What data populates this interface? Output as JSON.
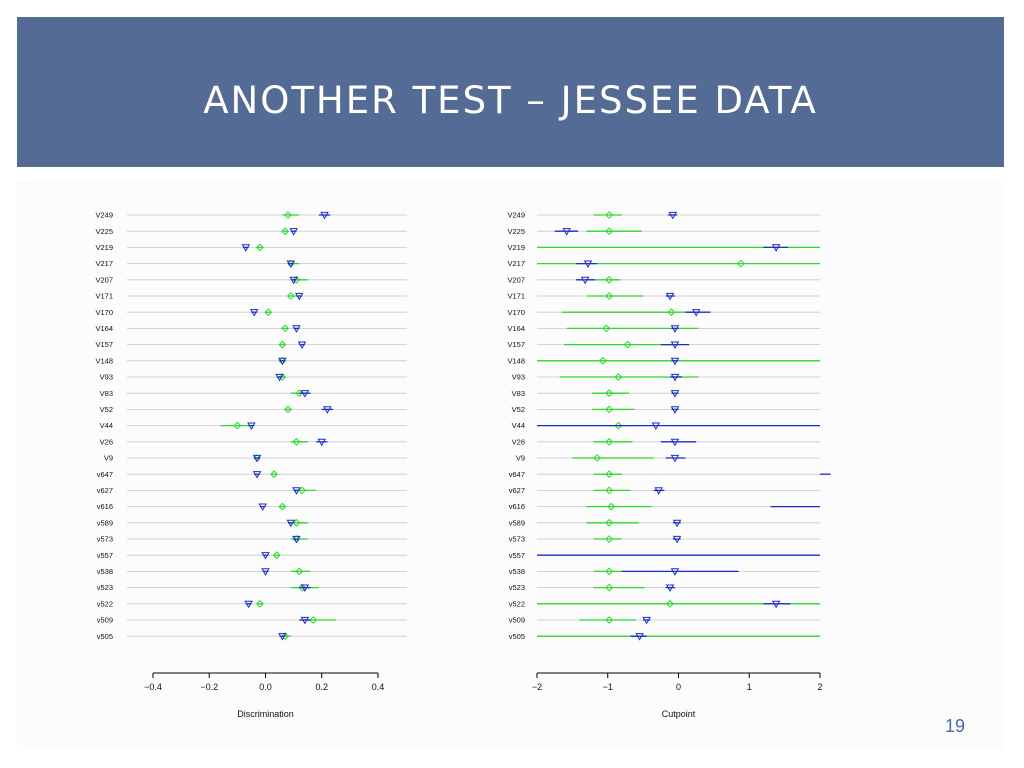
{
  "slide": {
    "title": "Another Test – Jessee Data",
    "page_number": "19"
  },
  "colors": {
    "header_bg": "#546b96",
    "title_text": "#ffffff",
    "green_series": "#2ed82e",
    "blue_series": "#1d2cc8",
    "grid": "#c8c8c8"
  },
  "chart_data": [
    {
      "type": "dot-interval",
      "xlabel": "Discrimination",
      "xlim": [
        -0.4,
        0.4
      ],
      "xticks": [
        -0.4,
        -0.2,
        0.0,
        0.2,
        0.4
      ],
      "xtick_labels": [
        "−0.4",
        "−0.2",
        "0.0",
        "0.2",
        "0.4"
      ],
      "grid": "horizontal",
      "rows": [
        "V249",
        "V225",
        "V219",
        "V217",
        "V207",
        "V171",
        "V170",
        "V164",
        "V157",
        "V148",
        "V93",
        "V83",
        "V52",
        "V44",
        "V26",
        "V9",
        "v647",
        "v627",
        "v616",
        "v589",
        "v573",
        "v557",
        "v538",
        "v523",
        "v522",
        "v509",
        "v505"
      ],
      "series": [
        {
          "marker": "diamond",
          "color": "#2ed82e",
          "points": [
            0.08,
            0.07,
            -0.02,
            0.09,
            0.11,
            0.09,
            0.01,
            0.07,
            0.06,
            0.06,
            0.06,
            0.12,
            0.08,
            -0.1,
            0.11,
            -0.03,
            0.03,
            0.13,
            0.06,
            0.11,
            0.11,
            0.04,
            0.12,
            0.13,
            -0.02,
            0.17,
            0.07
          ],
          "lo": [
            0.06,
            0.06,
            -0.03,
            0.08,
            0.09,
            0.08,
            0.0,
            0.06,
            0.05,
            0.05,
            0.05,
            0.09,
            0.07,
            -0.16,
            0.09,
            -0.04,
            0.02,
            0.1,
            0.05,
            0.08,
            0.09,
            0.03,
            0.09,
            0.09,
            -0.03,
            0.12,
            0.06
          ],
          "hi": [
            0.12,
            0.08,
            -0.01,
            0.12,
            0.15,
            0.11,
            0.02,
            0.08,
            0.07,
            0.07,
            0.07,
            0.15,
            0.09,
            -0.05,
            0.15,
            -0.02,
            0.04,
            0.18,
            0.07,
            0.15,
            0.15,
            0.05,
            0.16,
            0.19,
            -0.01,
            0.25,
            0.09
          ]
        },
        {
          "marker": "triangle-down",
          "color": "#1d2cc8",
          "points": [
            0.21,
            0.1,
            -0.07,
            0.09,
            0.1,
            0.12,
            -0.04,
            0.11,
            0.13,
            0.06,
            0.05,
            0.14,
            0.22,
            -0.05,
            0.2,
            -0.03,
            -0.03,
            0.11,
            -0.01,
            0.09,
            0.11,
            0.0,
            0.0,
            0.14,
            -0.06,
            0.14,
            0.06
          ],
          "lo": [
            0.19,
            0.09,
            -0.08,
            0.08,
            0.09,
            0.11,
            -0.05,
            0.1,
            0.12,
            0.05,
            0.04,
            0.12,
            0.2,
            -0.06,
            0.18,
            -0.04,
            -0.04,
            0.1,
            -0.02,
            0.08,
            0.1,
            -0.01,
            -0.01,
            0.12,
            -0.07,
            0.12,
            0.05
          ],
          "hi": [
            0.23,
            0.11,
            -0.06,
            0.1,
            0.11,
            0.13,
            -0.03,
            0.12,
            0.14,
            0.07,
            0.06,
            0.16,
            0.24,
            -0.04,
            0.22,
            -0.02,
            -0.02,
            0.12,
            0.0,
            0.1,
            0.12,
            0.01,
            0.01,
            0.16,
            -0.05,
            0.16,
            0.07
          ]
        }
      ]
    },
    {
      "type": "dot-interval",
      "xlabel": "Cutpoint",
      "xlim": [
        -2,
        2
      ],
      "xticks": [
        -2,
        -1,
        0,
        1,
        2
      ],
      "xtick_labels": [
        "−2",
        "−1",
        "0",
        "1",
        "2"
      ],
      "grid": "horizontal",
      "rows": [
        "V249",
        "V225",
        "V219",
        "V217",
        "V207",
        "V171",
        "V170",
        "V164",
        "V157",
        "V148",
        "V93",
        "V83",
        "V52",
        "V44",
        "V26",
        "V9",
        "v647",
        "v627",
        "v616",
        "v589",
        "v573",
        "v557",
        "v538",
        "v523",
        "v522",
        "v509",
        "v505"
      ],
      "series": [
        {
          "marker": "diamond",
          "color": "#2ed82e",
          "points": [
            -0.98,
            -0.98,
            null,
            0.88,
            -0.98,
            -0.98,
            -0.1,
            -1.02,
            -0.72,
            -1.07,
            -0.85,
            -0.98,
            -0.98,
            -0.85,
            -0.98,
            -1.15,
            -0.98,
            -0.98,
            -0.95,
            -0.98,
            -0.98,
            null,
            -0.98,
            -0.98,
            -0.12,
            -0.98,
            null
          ],
          "lo": [
            -1.2,
            -1.3,
            -2.0,
            -2.0,
            -1.2,
            -1.3,
            -1.65,
            -1.58,
            -1.62,
            -2.0,
            -1.68,
            -1.22,
            -1.22,
            -1.0,
            -1.2,
            -1.5,
            -1.2,
            -1.2,
            -1.3,
            -1.3,
            -1.2,
            null,
            -1.2,
            -1.2,
            -2.0,
            -1.4,
            -2.0
          ],
          "hi": [
            -0.8,
            -0.52,
            2.0,
            2.0,
            -0.82,
            -0.5,
            0.3,
            0.28,
            0.0,
            2.0,
            0.28,
            -0.7,
            -0.62,
            -0.7,
            -0.65,
            -0.35,
            -0.8,
            -0.68,
            -0.38,
            -0.56,
            -0.8,
            null,
            -0.8,
            -0.48,
            2.0,
            -0.6,
            2.0
          ]
        },
        {
          "marker": "triangle-down",
          "color": "#1d2cc8",
          "points": [
            -0.08,
            -1.58,
            1.38,
            -1.28,
            -1.32,
            -0.12,
            0.25,
            -0.05,
            -0.05,
            -0.05,
            -0.05,
            -0.05,
            -0.05,
            -0.32,
            -0.05,
            -0.05,
            null,
            -0.28,
            null,
            -0.02,
            -0.02,
            null,
            -0.05,
            -0.12,
            1.38,
            -0.45,
            -0.55
          ],
          "lo": [
            -0.15,
            -1.75,
            1.2,
            -1.45,
            -1.45,
            -0.18,
            0.1,
            -0.1,
            -0.25,
            -0.1,
            -0.12,
            -0.1,
            -0.1,
            -2.0,
            -0.25,
            -0.18,
            2.0,
            -0.35,
            1.3,
            -0.08,
            -0.08,
            -2.0,
            -0.8,
            -0.18,
            1.2,
            -0.5,
            -0.68
          ],
          "hi": [
            -0.02,
            -1.42,
            1.55,
            -1.15,
            -1.18,
            -0.05,
            0.45,
            0.0,
            0.15,
            0.0,
            0.05,
            0.0,
            0.0,
            2.0,
            0.25,
            0.1,
            2.15,
            -0.2,
            2.0,
            0.03,
            0.03,
            2.0,
            0.85,
            -0.05,
            1.58,
            -0.4,
            -0.45
          ]
        }
      ]
    }
  ]
}
